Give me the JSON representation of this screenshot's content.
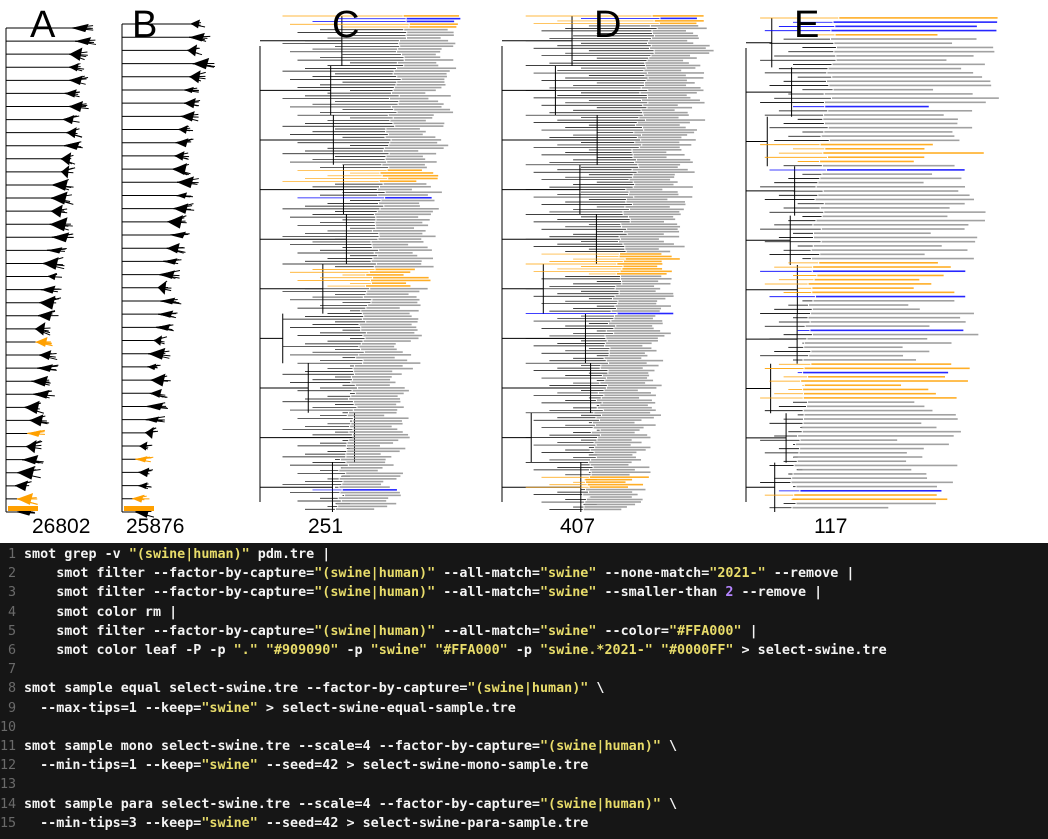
{
  "panels": [
    {
      "letter": "A",
      "count": "26802"
    },
    {
      "letter": "B",
      "count": "25876"
    },
    {
      "letter": "C",
      "count": "251"
    },
    {
      "letter": "D",
      "count": "407"
    },
    {
      "letter": "E",
      "count": "117"
    }
  ],
  "colors": {
    "gray": "#909090",
    "swine": "#FFA000",
    "recent": "#0000FF",
    "branch": "#000000",
    "code_bg": "#161616"
  },
  "code": [
    {
      "n": "1",
      "parts": [
        [
          "t",
          "smot grep -v "
        ],
        [
          "s",
          "\"(swine|human)\""
        ],
        [
          "t",
          " pdm.tre |"
        ]
      ]
    },
    {
      "n": "2",
      "parts": [
        [
          "t",
          "    smot filter --factor-by-capture="
        ],
        [
          "s",
          "\"(swine|human)\""
        ],
        [
          "t",
          " --all-match="
        ],
        [
          "s",
          "\"swine\""
        ],
        [
          "t",
          " --none-match="
        ],
        [
          "s",
          "\"2021-\""
        ],
        [
          "t",
          " --remove |"
        ]
      ]
    },
    {
      "n": "3",
      "parts": [
        [
          "t",
          "    smot filter --factor-by-capture="
        ],
        [
          "s",
          "\"(swine|human)\""
        ],
        [
          "t",
          " --all-match="
        ],
        [
          "s",
          "\"swine\""
        ],
        [
          "t",
          " --smaller-than "
        ],
        [
          "n",
          "2"
        ],
        [
          "t",
          " --remove |"
        ]
      ]
    },
    {
      "n": "4",
      "parts": [
        [
          "t",
          "    smot color rm |"
        ]
      ]
    },
    {
      "n": "5",
      "parts": [
        [
          "t",
          "    smot filter --factor-by-capture="
        ],
        [
          "s",
          "\"(swine|human)\""
        ],
        [
          "t",
          " --all-match="
        ],
        [
          "s",
          "\"swine\""
        ],
        [
          "t",
          " --color="
        ],
        [
          "s",
          "\"#FFA000\""
        ],
        [
          "t",
          " |"
        ]
      ]
    },
    {
      "n": "6",
      "parts": [
        [
          "t",
          "    smot color leaf -P -p "
        ],
        [
          "s",
          "\".\""
        ],
        [
          "t",
          " "
        ],
        [
          "s",
          "\"#909090\""
        ],
        [
          "t",
          " -p "
        ],
        [
          "s",
          "\"swine\""
        ],
        [
          "t",
          " "
        ],
        [
          "s",
          "\"#FFA000\""
        ],
        [
          "t",
          " -p "
        ],
        [
          "s",
          "\"swine.*2021-\""
        ],
        [
          "t",
          " "
        ],
        [
          "s",
          "\"#0000FF\""
        ],
        [
          "t",
          " > select-swine.tre"
        ]
      ]
    },
    {
      "n": "7",
      "parts": []
    },
    {
      "n": "8",
      "parts": [
        [
          "t",
          "smot sample equal select-swine.tre --factor-by-capture="
        ],
        [
          "s",
          "\"(swine|human)\""
        ],
        [
          "t",
          " \\"
        ]
      ]
    },
    {
      "n": "9",
      "parts": [
        [
          "t",
          "  --max-tips=1 --keep="
        ],
        [
          "s",
          "\"swine\""
        ],
        [
          "t",
          " > select-swine-equal-sample.tre"
        ]
      ]
    },
    {
      "n": "10",
      "parts": []
    },
    {
      "n": "11",
      "parts": [
        [
          "t",
          "smot sample mono select-swine.tre --scale=4 --factor-by-capture="
        ],
        [
          "s",
          "\"(swine|human)\""
        ],
        [
          "t",
          " \\"
        ]
      ]
    },
    {
      "n": "12",
      "parts": [
        [
          "t",
          "  --min-tips=1 --keep="
        ],
        [
          "s",
          "\"swine\""
        ],
        [
          "t",
          " --seed=42 > select-swine-mono-sample.tre"
        ]
      ]
    },
    {
      "n": "13",
      "parts": []
    },
    {
      "n": "14",
      "parts": [
        [
          "t",
          "smot sample para select-swine.tre --scale=4 --factor-by-capture="
        ],
        [
          "s",
          "\"(swine|human)\""
        ],
        [
          "t",
          " \\"
        ]
      ]
    },
    {
      "n": "15",
      "parts": [
        [
          "t",
          "  --min-tips=3 --keep="
        ],
        [
          "s",
          "\"swine\""
        ],
        [
          "t",
          " --seed=42 > select-swine-para-sample.tre"
        ]
      ]
    }
  ]
}
